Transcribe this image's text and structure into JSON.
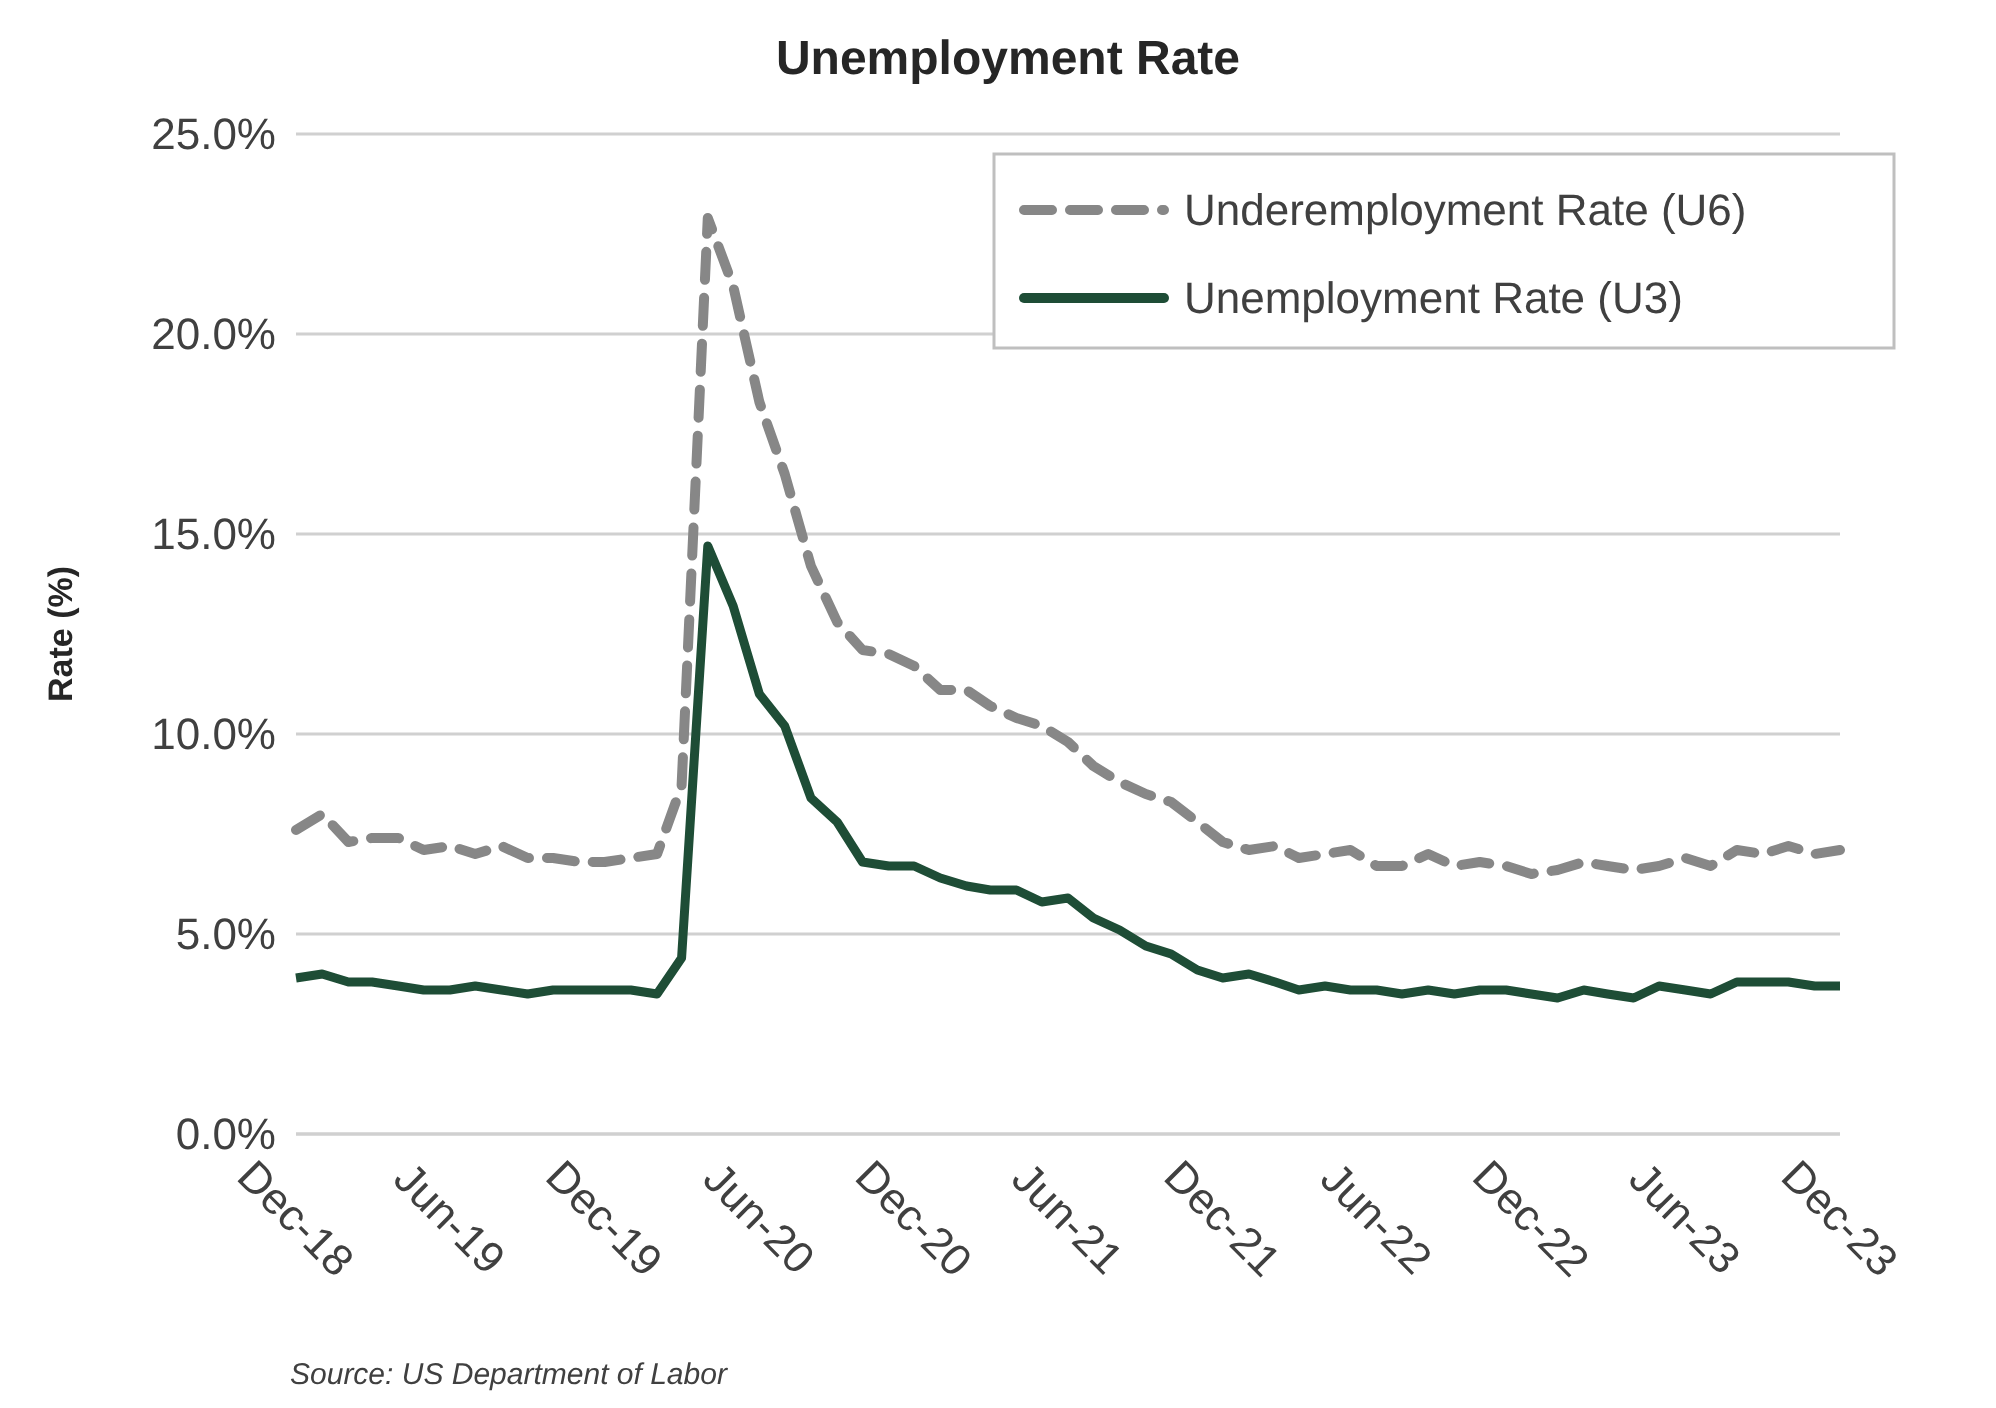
{
  "chart_data": {
    "type": "line",
    "title": "Unemployment Rate",
    "ylabel": "Rate (%)",
    "annotations": [
      "Source: US Department of Labor"
    ],
    "x": [
      "2018-12",
      "2019-01",
      "2019-02",
      "2019-03",
      "2019-04",
      "2019-05",
      "2019-06",
      "2019-07",
      "2019-08",
      "2019-09",
      "2019-10",
      "2019-11",
      "2019-12",
      "2020-01",
      "2020-02",
      "2020-03",
      "2020-04",
      "2020-05",
      "2020-06",
      "2020-07",
      "2020-08",
      "2020-09",
      "2020-10",
      "2020-11",
      "2020-12",
      "2021-01",
      "2021-02",
      "2021-03",
      "2021-04",
      "2021-05",
      "2021-06",
      "2021-07",
      "2021-08",
      "2021-09",
      "2021-10",
      "2021-11",
      "2021-12",
      "2022-01",
      "2022-02",
      "2022-03",
      "2022-04",
      "2022-05",
      "2022-06",
      "2022-07",
      "2022-08",
      "2022-09",
      "2022-10",
      "2022-11",
      "2022-12",
      "2023-01",
      "2023-02",
      "2023-03",
      "2023-04",
      "2023-05",
      "2023-06",
      "2023-07",
      "2023-08",
      "2023-09",
      "2023-10",
      "2023-11",
      "2023-12"
    ],
    "series": [
      {
        "name": "Underemployment Rate (U6)",
        "color": "#878787",
        "line_style": "dashed",
        "values": [
          7.6,
          8.0,
          7.3,
          7.4,
          7.4,
          7.1,
          7.2,
          7.0,
          7.2,
          6.9,
          6.9,
          6.8,
          6.8,
          6.9,
          7.0,
          8.7,
          22.9,
          21.2,
          18.3,
          16.5,
          14.2,
          12.8,
          12.1,
          12.0,
          11.7,
          11.1,
          11.1,
          10.7,
          10.4,
          10.2,
          9.8,
          9.2,
          8.8,
          8.5,
          8.3,
          7.8,
          7.3,
          7.1,
          7.2,
          6.9,
          7.0,
          7.1,
          6.7,
          6.7,
          7.0,
          6.7,
          6.8,
          6.7,
          6.5,
          6.6,
          6.8,
          6.7,
          6.6,
          6.7,
          6.9,
          6.7,
          7.1,
          7.0,
          7.2,
          7.0,
          7.1
        ]
      },
      {
        "name": "Unemployment Rate (U3)",
        "color": "#1e4d36",
        "line_style": "solid",
        "values": [
          3.9,
          4.0,
          3.8,
          3.8,
          3.7,
          3.6,
          3.6,
          3.7,
          3.6,
          3.5,
          3.6,
          3.6,
          3.6,
          3.6,
          3.5,
          4.4,
          14.7,
          13.2,
          11.0,
          10.2,
          8.4,
          7.8,
          6.8,
          6.7,
          6.7,
          6.4,
          6.2,
          6.1,
          6.1,
          5.8,
          5.9,
          5.4,
          5.1,
          4.7,
          4.5,
          4.1,
          3.9,
          4.0,
          3.8,
          3.6,
          3.7,
          3.6,
          3.6,
          3.5,
          3.6,
          3.5,
          3.6,
          3.6,
          3.5,
          3.4,
          3.6,
          3.5,
          3.4,
          3.7,
          3.6,
          3.5,
          3.8,
          3.8,
          3.8,
          3.7,
          3.7
        ]
      }
    ],
    "xlim": [
      "2018-12",
      "2023-12"
    ],
    "xticks": [
      {
        "value": "2018-12",
        "label": "Dec-18"
      },
      {
        "value": "2019-06",
        "label": "Jun-19"
      },
      {
        "value": "2019-12",
        "label": "Dec-19"
      },
      {
        "value": "2020-06",
        "label": "Jun-20"
      },
      {
        "value": "2020-12",
        "label": "Dec-20"
      },
      {
        "value": "2021-06",
        "label": "Jun-21"
      },
      {
        "value": "2021-12",
        "label": "Dec-21"
      },
      {
        "value": "2022-06",
        "label": "Jun-22"
      },
      {
        "value": "2022-12",
        "label": "Dec-22"
      },
      {
        "value": "2023-06",
        "label": "Jun-23"
      },
      {
        "value": "2023-12",
        "label": "Dec-23"
      }
    ],
    "ylim": [
      0,
      25
    ],
    "yticks": [
      {
        "value": 0,
        "label": "0.0%"
      },
      {
        "value": 5,
        "label": "5.0%"
      },
      {
        "value": 10,
        "label": "10.0%"
      },
      {
        "value": 15,
        "label": "15.0%"
      },
      {
        "value": 20,
        "label": "20.0%"
      },
      {
        "value": 25,
        "label": "25.0%"
      }
    ],
    "grid": "y",
    "legend": "top right"
  }
}
